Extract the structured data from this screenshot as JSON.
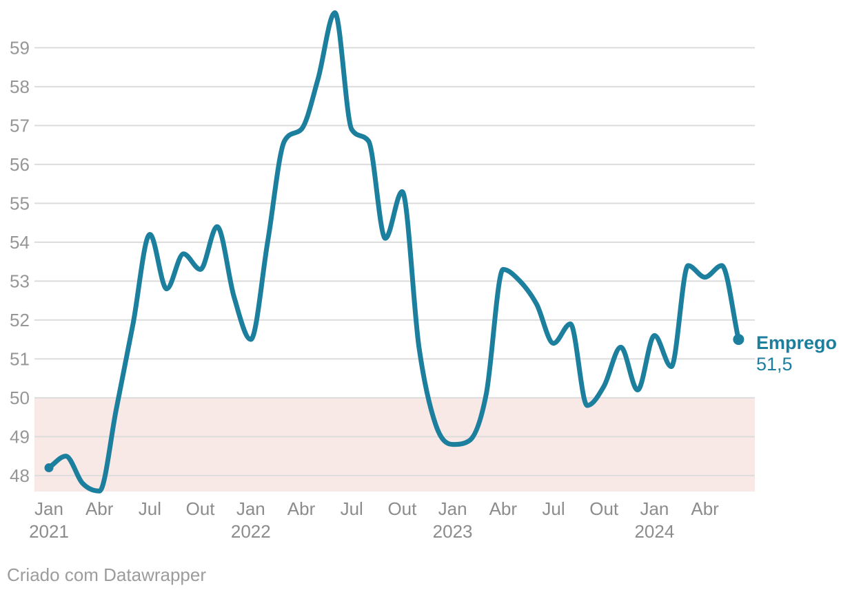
{
  "chart_data": {
    "type": "line",
    "title": "",
    "series": [
      {
        "name": "Emprego",
        "start_month": "Jan 2021",
        "interval": "monthly",
        "values": [
          48.2,
          48.5,
          47.8,
          47.6,
          49.7,
          51.9,
          54.2,
          52.8,
          53.7,
          53.3,
          54.4,
          52.6,
          51.5,
          54.0,
          56.6,
          56.9,
          58.2,
          59.9,
          56.9,
          56.6,
          54.1,
          55.3,
          51.3,
          49.3,
          48.8,
          48.9,
          50.1,
          53.3,
          53.0,
          52.4,
          51.4,
          51.9,
          49.8,
          50.3,
          51.3,
          50.2,
          51.6,
          50.8,
          53.4,
          53.1,
          53.4,
          51.5
        ]
      }
    ],
    "x_ticks": [
      {
        "index": 0,
        "label": "Jan",
        "year": "2021"
      },
      {
        "index": 3,
        "label": "Abr"
      },
      {
        "index": 6,
        "label": "Jul"
      },
      {
        "index": 9,
        "label": "Out"
      },
      {
        "index": 12,
        "label": "Jan",
        "year": "2022"
      },
      {
        "index": 15,
        "label": "Abr"
      },
      {
        "index": 18,
        "label": "Jul"
      },
      {
        "index": 21,
        "label": "Out"
      },
      {
        "index": 24,
        "label": "Jan",
        "year": "2023"
      },
      {
        "index": 27,
        "label": "Abr"
      },
      {
        "index": 30,
        "label": "Jul"
      },
      {
        "index": 33,
        "label": "Out"
      },
      {
        "index": 36,
        "label": "Jan",
        "year": "2024"
      },
      {
        "index": 39,
        "label": "Abr"
      }
    ],
    "y_ticks": [
      48,
      49,
      50,
      51,
      52,
      53,
      54,
      55,
      56,
      57,
      58,
      59
    ],
    "ylim": [
      47.59,
      60.05
    ],
    "grid": true,
    "highlight_band": {
      "from_value": "ymin",
      "to_value": 50
    },
    "start_dot": true,
    "end_dot": true,
    "legend_position": "end-of-line"
  },
  "annotation": {
    "series_end_label": "Emprego",
    "series_end_value": "51,5"
  },
  "footer": {
    "attribution": "Criado com Datawrapper"
  },
  "colors": {
    "line": "#1d7f9e",
    "band": "#f8e9e6",
    "grid": "#dcdcdc",
    "y_tick_text": "#969696",
    "x_tick_text": "#8c8c8c",
    "footer_text": "#9c9c9c"
  }
}
